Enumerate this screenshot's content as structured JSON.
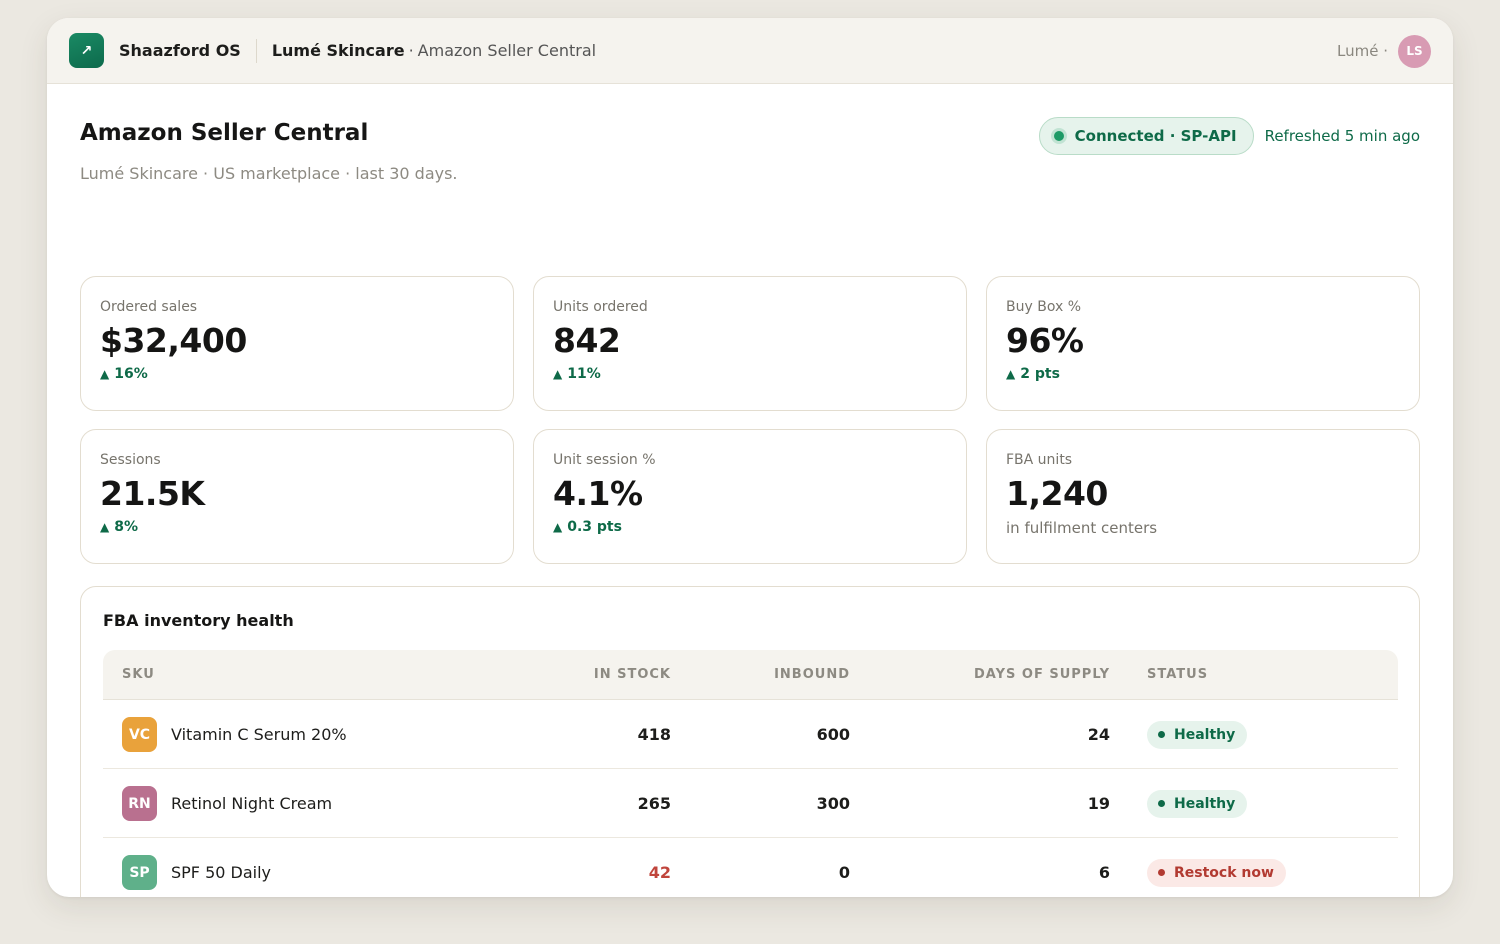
{
  "topbar": {
    "logo_glyph": "↗",
    "brand": "Shaazford OS",
    "breadcrumb_account": "Lumé Skincare",
    "breadcrumb_sep": "·",
    "breadcrumb_page": "Amazon Seller Central",
    "user_label": "Lumé ·",
    "avatar_initials": "LS"
  },
  "header": {
    "title": "Amazon Seller Central",
    "subtitle": "Lumé Skincare · US marketplace · last 30 days.",
    "connection": "Connected · SP-API",
    "refreshed": "Refreshed 5 min ago"
  },
  "kpis": [
    {
      "label": "Ordered sales",
      "value": "$32,400",
      "delta": "16%",
      "trend": "up"
    },
    {
      "label": "Units ordered",
      "value": "842",
      "delta": "11%",
      "trend": "up"
    },
    {
      "label": "Buy Box %",
      "value": "96%",
      "delta": "2 pts",
      "trend": "up"
    },
    {
      "label": "Sessions",
      "value": "21.5K",
      "delta": "8%",
      "trend": "up"
    },
    {
      "label": "Unit session %",
      "value": "4.1%",
      "delta": "0.3 pts",
      "trend": "up"
    },
    {
      "label": "FBA units",
      "value": "1,240",
      "note": "in fulfilment centers"
    }
  ],
  "trend_glyph": "▲",
  "inventory": {
    "title": "FBA inventory health",
    "columns": [
      "SKU",
      "IN STOCK",
      "INBOUND",
      "DAYS OF SUPPLY",
      "STATUS"
    ],
    "rows": [
      {
        "initials": "VC",
        "name": "Vitamin C Serum 20%",
        "in_stock": "418",
        "inbound": "600",
        "days_of_supply": "24",
        "status": "Healthy",
        "badge_color": "#e9a23b"
      },
      {
        "initials": "RN",
        "name": "Retinol Night Cream",
        "in_stock": "265",
        "inbound": "300",
        "days_of_supply": "19",
        "status": "Healthy",
        "badge_color": "#b9708f"
      },
      {
        "initials": "SP",
        "name": "SPF 50 Daily",
        "in_stock": "42",
        "inbound": "0",
        "days_of_supply": "6",
        "status": "Restock now",
        "badge_color": "#5fb08a"
      }
    ]
  },
  "colors": {
    "accent": "#0e6a48",
    "alert": "#c0453c",
    "background": "#ebe8e1"
  }
}
